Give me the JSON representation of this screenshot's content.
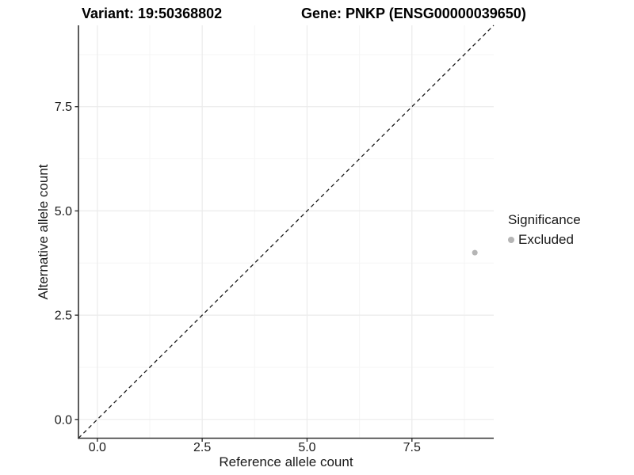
{
  "chart_data": {
    "type": "scatter",
    "title_left": "Variant: 19:50368802",
    "title_right": "Gene: PNKP (ENSG00000039650)",
    "xlabel": "Reference allele count",
    "ylabel": "Alternative allele count",
    "xlim": [
      -0.45,
      9.45
    ],
    "ylim": [
      -0.45,
      9.45
    ],
    "xticks": [
      0,
      2.5,
      5,
      7.5
    ],
    "xtick_labels": [
      "0.0",
      "2.5",
      "5.0",
      "7.5"
    ],
    "yticks": [
      0,
      2.5,
      5,
      7.5
    ],
    "ytick_labels": [
      "0.0",
      "2.5",
      "5.0",
      "7.5"
    ],
    "minor_ticks": [
      1.25,
      3.75,
      6.25,
      8.75
    ],
    "grid": true,
    "reference_line": {
      "type": "identity y=x",
      "style": "dashed"
    },
    "series": [
      {
        "name": "Excluded",
        "color": "#b5b5b5",
        "points": [
          {
            "x": 9,
            "y": 4
          }
        ]
      }
    ],
    "legend": {
      "title": "Significance",
      "position": "right",
      "items": [
        {
          "label": "Excluded",
          "color": "#b5b5b5",
          "marker": "circle"
        }
      ]
    }
  },
  "colors": {
    "background": "#ffffff",
    "grid_major": "#ebebeb",
    "grid_minor": "#f5f5f5",
    "axis_line": "#333333",
    "tick_mark": "#333333",
    "text": "#1a1a1a",
    "reference_line": "#1a1a1a"
  }
}
